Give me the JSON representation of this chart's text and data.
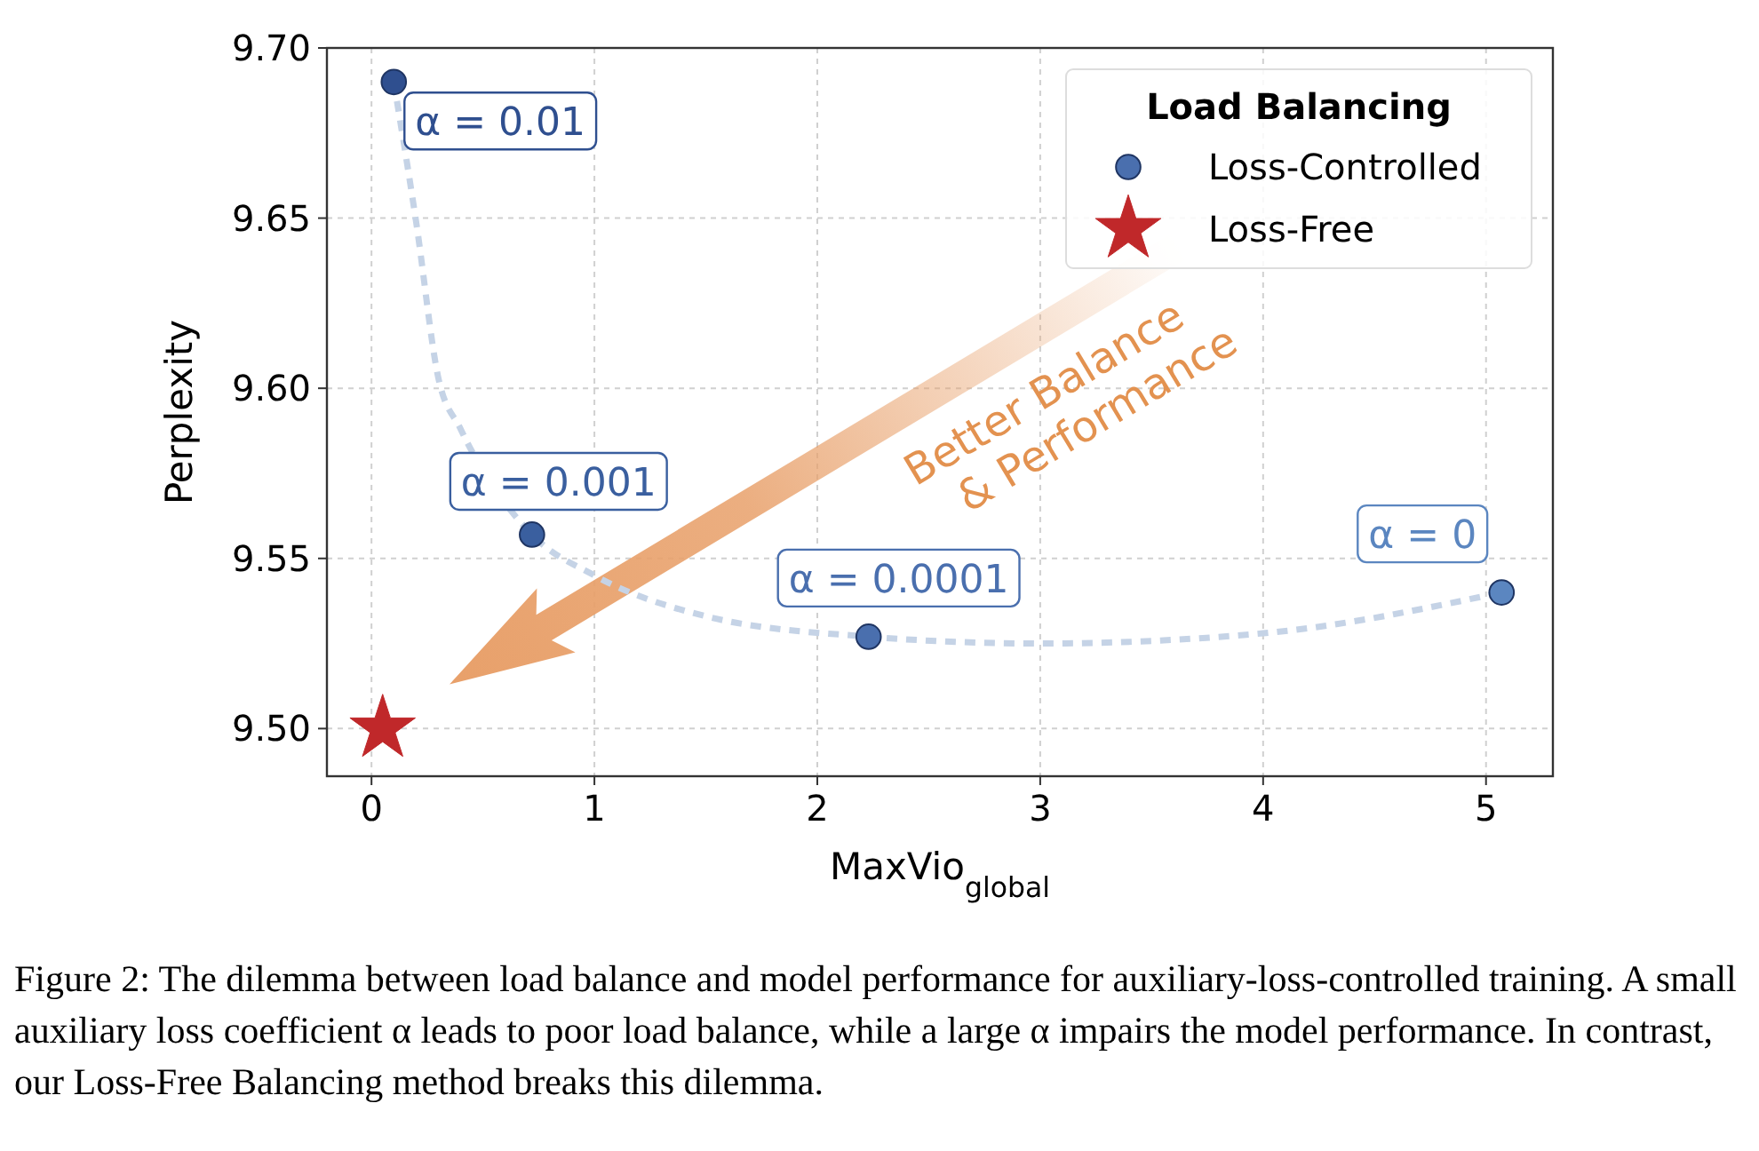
{
  "chart_data": {
    "type": "scatter",
    "xlabel": "MaxVio$_{global}$",
    "ylabel": "Perplexity",
    "legend_title": "Load Balancing",
    "xlim": [
      -0.2,
      5.3
    ],
    "xticks": [
      0,
      1,
      2,
      3,
      4,
      5
    ],
    "ylim": [
      9.486,
      9.7
    ],
    "yticks": [
      {
        "value": 9.5,
        "label": "9.50"
      },
      {
        "value": 9.55,
        "label": "9.55"
      },
      {
        "value": 9.6,
        "label": "9.60"
      },
      {
        "value": 9.65,
        "label": "9.65"
      },
      {
        "value": 9.7,
        "label": "9.70"
      }
    ],
    "grid": true,
    "legend": "top right",
    "series": [
      {
        "type": "line",
        "color": "#c5d3e6",
        "line_style": "dashed",
        "marker": "none",
        "x": [
          0.1,
          0.2,
          0.3,
          0.4,
          0.72,
          1.0,
          1.5,
          2.23,
          3.0,
          4.0,
          5.07
        ],
        "values": [
          9.69,
          9.649,
          9.603,
          9.588,
          9.557,
          9.545,
          9.533,
          9.527,
          9.525,
          9.528,
          9.54
        ]
      },
      {
        "name": "Loss-Controlled",
        "marker": "circle",
        "color": "#4a6fae",
        "colors": [
          "#2f4f8f",
          "#3a5f9f",
          "#4a6fae",
          "#5b86c0"
        ],
        "x": [
          0.1,
          0.72,
          2.23,
          5.07
        ],
        "values": [
          9.69,
          9.557,
          9.527,
          9.54
        ]
      },
      {
        "name": "Loss-Free",
        "marker": "star",
        "color": "#c0282a",
        "x": [
          0.05
        ],
        "values": [
          9.5
        ]
      }
    ],
    "annotations": [
      {
        "text": "α = 0.01",
        "x": 0.1,
        "y": 9.69
      },
      {
        "text": "α = 0.001",
        "x": 0.72,
        "y": 9.557
      },
      {
        "text": "α = 0.0001",
        "x": 2.23,
        "y": 9.527
      },
      {
        "text": "α = 0",
        "x": 5.07,
        "y": 9.54
      },
      "Better Balance\n& Performance",
      "Figure 2: The dilemma between load balance and model performance for auxiliary-loss-controlled training. A small auxiliary loss coefficient α leads to poor load balance, while a large α impairs the model performance. In contrast, our Loss-Free Balancing method breaks this dilemma."
    ]
  }
}
